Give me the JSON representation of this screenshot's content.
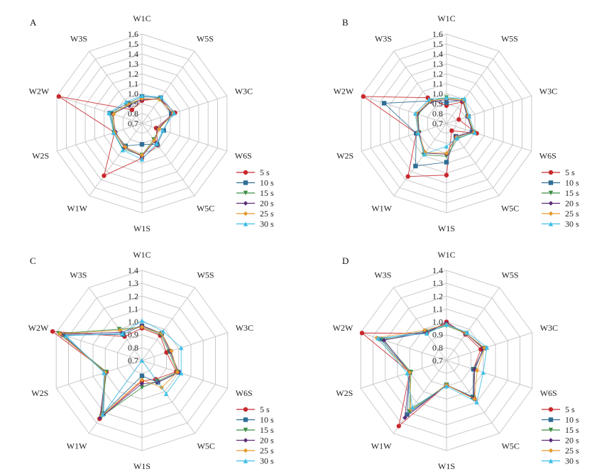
{
  "chart_data": [
    {
      "panel": "A",
      "type": "radar",
      "axes": [
        "W1C",
        "W5S",
        "W3C",
        "W6S",
        "W5C",
        "W1S",
        "W1W",
        "W2S",
        "W2W",
        "W3S"
      ],
      "ticks": [
        "0.7",
        "0.8",
        "0.9",
        "1.0",
        "1.1",
        "1.2",
        "1.3",
        "1.4",
        "1.5",
        "1.6"
      ],
      "rlim": [
        0.7,
        1.6
      ],
      "grid": true,
      "legend_position": "right",
      "series": [
        {
          "name": "5 s",
          "values": [
            0.93,
            1.01,
            1.05,
            0.85,
            0.97,
            1.05,
            1.35,
            0.99,
            1.58,
            0.87
          ]
        },
        {
          "name": "10 s",
          "values": [
            0.97,
            1.02,
            1.01,
            0.93,
            0.96,
            0.91,
            0.98,
            0.99,
            1.04,
            0.95
          ]
        },
        {
          "name": "15 s",
          "values": [
            0.95,
            1.0,
            1.03,
            0.88,
            0.9,
            1.02,
            1.02,
            1.0,
            1.02,
            0.93
          ]
        },
        {
          "name": "20 s",
          "values": [
            0.94,
            1.01,
            1.02,
            0.87,
            0.92,
            1.03,
            1.0,
            0.98,
            1.01,
            0.92
          ]
        },
        {
          "name": "25 s",
          "values": [
            0.95,
            1.0,
            1.03,
            0.88,
            0.91,
            1.02,
            0.99,
            0.99,
            1.0,
            0.94
          ]
        },
        {
          "name": "30 s",
          "values": [
            0.98,
            1.03,
            1.04,
            0.92,
            0.95,
            1.06,
            1.03,
            1.0,
            1.05,
            0.97
          ]
        }
      ]
    },
    {
      "panel": "B",
      "type": "radar",
      "axes": [
        "W1C",
        "W5S",
        "W3C",
        "W6S",
        "W5C",
        "W1S",
        "W1W",
        "W2S",
        "W2W",
        "W3S"
      ],
      "ticks": [
        "0.7",
        "0.8",
        "0.9",
        "1.0",
        "1.1",
        "1.2",
        "1.3",
        "1.4",
        "1.5",
        "1.6"
      ],
      "rlim": [
        0.7,
        1.6
      ],
      "grid": true,
      "legend_position": "right",
      "series": [
        {
          "name": "5 s",
          "values": [
            0.88,
            0.97,
            0.83,
            1.02,
            0.79,
            1.22,
            1.36,
            1.02,
            1.58,
            1.02
          ]
        },
        {
          "name": "10 s",
          "values": [
            0.91,
            0.99,
            0.93,
            0.97,
            0.86,
            1.09,
            1.23,
            1.02,
            1.36,
            0.98
          ]
        },
        {
          "name": "15 s",
          "values": [
            0.96,
            0.99,
            0.92,
            0.99,
            0.89,
            1.03,
            1.09,
            0.99,
            1.0,
            0.98
          ]
        },
        {
          "name": "20 s",
          "values": [
            0.94,
            0.98,
            0.92,
            0.98,
            0.86,
            1.01,
            1.07,
            0.99,
            1.01,
            0.97
          ]
        },
        {
          "name": "25 s",
          "values": [
            0.95,
            0.99,
            0.93,
            0.99,
            0.87,
            1.0,
            1.06,
            1.0,
            1.02,
            0.98
          ]
        },
        {
          "name": "30 s",
          "values": [
            0.96,
            1.01,
            0.94,
            1.0,
            0.88,
            0.93,
            1.08,
            1.0,
            1.03,
            1.0
          ]
        }
      ]
    },
    {
      "panel": "C",
      "type": "radar",
      "axes": [
        "W1C",
        "W5S",
        "W3C",
        "W6S",
        "W5C",
        "W1S",
        "W1W",
        "W2S",
        "W2W",
        "W3S"
      ],
      "ticks": [
        "0.7",
        "0.8",
        "0.9",
        "1.0",
        "1.1",
        "1.2",
        "1.3",
        "1.4"
      ],
      "rlim": [
        0.7,
        1.4
      ],
      "grid": true,
      "legend_position": "right",
      "series": [
        {
          "name": "5 s",
          "values": [
            0.95,
            0.94,
            0.9,
            0.98,
            0.88,
            0.86,
            1.26,
            0.99,
            1.43,
            0.93
          ]
        },
        {
          "name": "10 s",
          "values": [
            0.97,
            0.96,
            0.93,
            1.0,
            0.91,
            0.82,
            1.21,
            1.0,
            1.34,
            0.95
          ]
        },
        {
          "name": "15 s",
          "values": [
            0.96,
            0.95,
            0.92,
            0.99,
            0.9,
            0.91,
            1.24,
            0.99,
            1.38,
            1.0
          ]
        },
        {
          "name": "20 s",
          "values": [
            0.97,
            0.96,
            0.93,
            1.0,
            0.91,
            0.88,
            1.25,
            1.0,
            1.36,
            0.97
          ]
        },
        {
          "name": "25 s",
          "values": [
            0.96,
            0.96,
            0.94,
            0.99,
            0.96,
            0.85,
            1.23,
            1.0,
            1.37,
            0.99
          ]
        },
        {
          "name": "30 s",
          "values": [
            1.01,
            0.98,
            1.02,
            1.02,
            1.02,
            0.7,
            1.22,
            1.01,
            1.32,
            0.96
          ]
        }
      ]
    },
    {
      "panel": "D",
      "type": "radar",
      "axes": [
        "W1C",
        "W5S",
        "W3C",
        "W6S",
        "W5C",
        "W1S",
        "W1W",
        "W2S",
        "W2W",
        "W3S"
      ],
      "ticks": [
        "0.7",
        "0.8",
        "0.9",
        "1.0",
        "1.1",
        "1.2",
        "1.3",
        "1.4"
      ],
      "rlim": [
        0.7,
        1.4
      ],
      "grid": true,
      "legend_position": "right",
      "series": [
        {
          "name": "5 s",
          "values": [
            1.0,
            0.95,
            0.98,
            0.92,
            1.07,
            0.89,
            1.33,
            1.0,
            1.39,
            0.96
          ]
        },
        {
          "name": "10 s",
          "values": [
            0.98,
            0.96,
            1.01,
            0.92,
            1.05,
            0.89,
            1.22,
            1.0,
            1.24,
            0.98
          ]
        },
        {
          "name": "15 s",
          "values": [
            0.97,
            0.96,
            1.0,
            0.93,
            1.06,
            0.89,
            1.19,
            0.99,
            1.22,
            0.97
          ]
        },
        {
          "name": "20 s",
          "values": [
            0.99,
            0.96,
            1.0,
            0.93,
            1.06,
            0.89,
            1.25,
            1.0,
            1.21,
            0.97
          ]
        },
        {
          "name": "25 s",
          "values": [
            0.98,
            0.96,
            1.01,
            0.95,
            1.07,
            0.89,
            1.17,
            1.0,
            1.27,
            0.99
          ]
        },
        {
          "name": "30 s",
          "values": [
            0.98,
            0.97,
            1.03,
            1.0,
            1.1,
            0.9,
            1.15,
            1.02,
            1.26,
            0.96
          ]
        }
      ]
    }
  ],
  "series_styles": [
    {
      "name": "5 s",
      "color": "#c8282d",
      "marker": "circle"
    },
    {
      "name": "10 s",
      "color": "#2f6e95",
      "marker": "square"
    },
    {
      "name": "15 s",
      "color": "#3d8f45",
      "marker": "triangle-down"
    },
    {
      "name": "20 s",
      "color": "#5b2a7a",
      "marker": "diamond"
    },
    {
      "name": "25 s",
      "color": "#e59a2f",
      "marker": "diamond"
    },
    {
      "name": "30 s",
      "color": "#3fbfe6",
      "marker": "triangle-up"
    }
  ]
}
